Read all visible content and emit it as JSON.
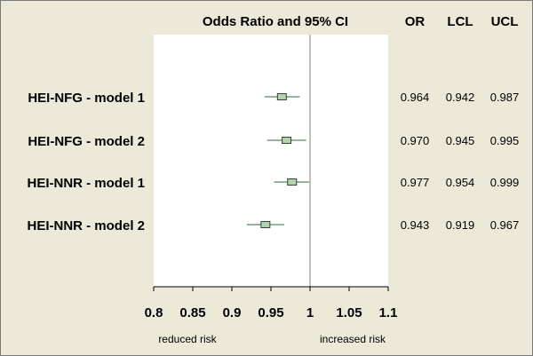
{
  "chart_data": {
    "type": "forest",
    "title": "Odds Ratio and 95% CI",
    "column_headers": {
      "or": "OR",
      "lcl": "LCL",
      "ucl": "UCL"
    },
    "rows": [
      {
        "label": "HEI-NFG - model 1",
        "or": 0.964,
        "lcl": 0.942,
        "ucl": 0.987,
        "or_text": "0.964",
        "lcl_text": "0.942",
        "ucl_text": "0.987"
      },
      {
        "label": "HEI-NFG - model 2",
        "or": 0.97,
        "lcl": 0.945,
        "ucl": 0.995,
        "or_text": "0.970",
        "lcl_text": "0.945",
        "ucl_text": "0.995"
      },
      {
        "label": "HEI-NNR - model 1",
        "or": 0.977,
        "lcl": 0.954,
        "ucl": 0.999,
        "or_text": "0.977",
        "lcl_text": "0.954",
        "ucl_text": "0.999"
      },
      {
        "label": "HEI-NNR - model 2",
        "or": 0.943,
        "lcl": 0.919,
        "ucl": 0.967,
        "or_text": "0.943",
        "lcl_text": "0.919",
        "ucl_text": "0.967"
      }
    ],
    "xlim": [
      0.8,
      1.1
    ],
    "xticks": [
      "0.8",
      "0.85",
      "0.9",
      "0.95",
      "1",
      "1.05",
      "1.1"
    ],
    "reference_line": 1,
    "left_annotation": "reduced risk",
    "right_annotation": "increased risk",
    "colors": {
      "background": "#ece9d8",
      "plot_area": "#ffffff",
      "marker_fill": "#b4d2b0",
      "marker_stroke": "#334433",
      "ci_line": "#2e6b3a",
      "reference_line": "#808080",
      "text": "#000000"
    }
  }
}
